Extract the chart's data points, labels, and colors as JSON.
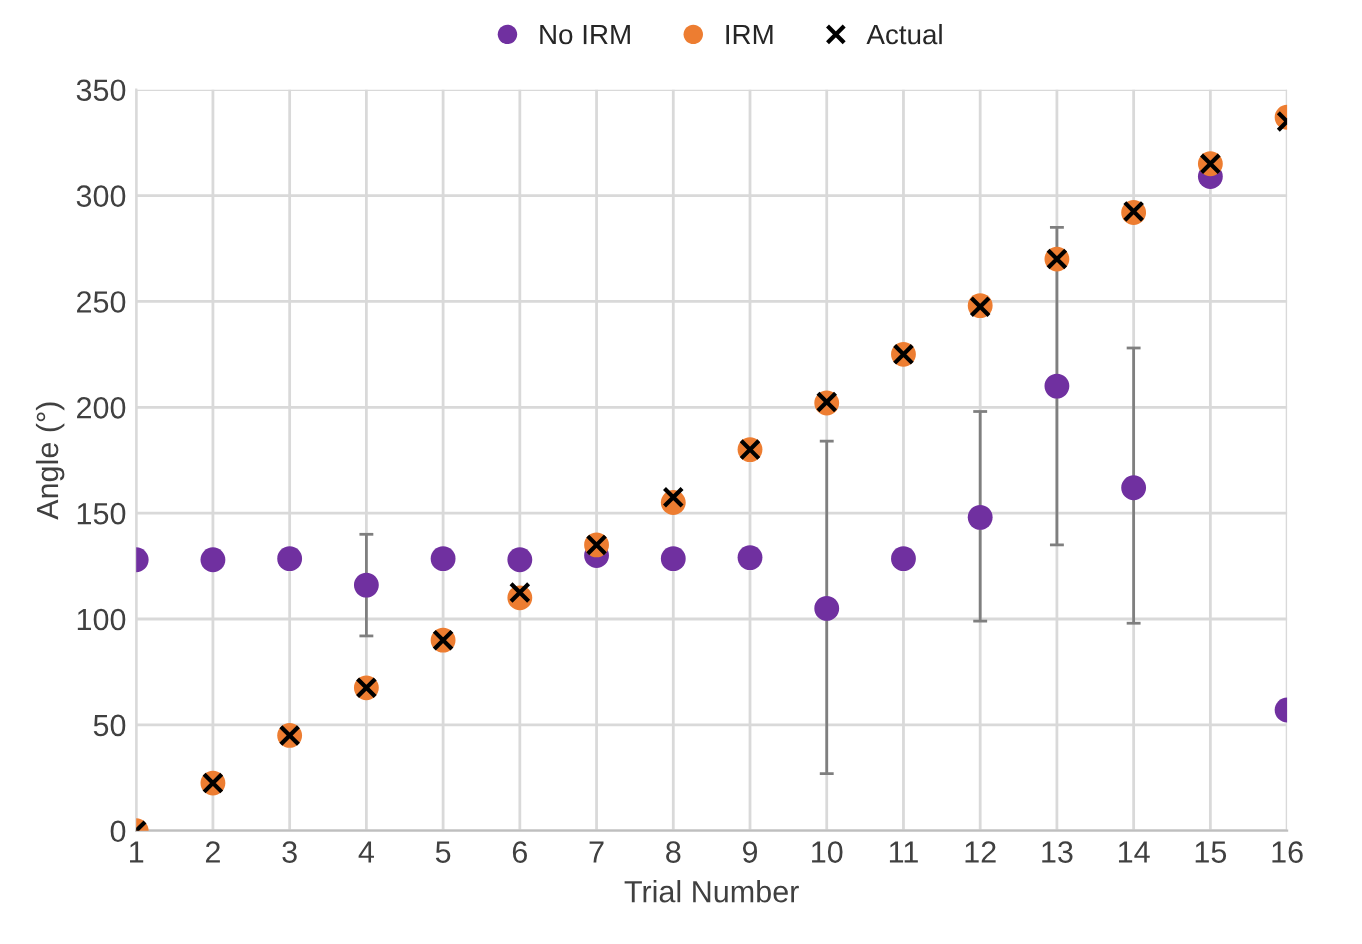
{
  "chart_data": {
    "type": "scatter",
    "xlabel": "Trial Number",
    "ylabel": "Angle (°)",
    "x": [
      1,
      2,
      3,
      4,
      5,
      6,
      7,
      8,
      9,
      10,
      11,
      12,
      13,
      14,
      15,
      16
    ],
    "xlim": [
      1,
      16
    ],
    "xticks": [
      1,
      2,
      3,
      4,
      5,
      6,
      7,
      8,
      9,
      10,
      11,
      12,
      13,
      14,
      15,
      16
    ],
    "ylim": [
      0,
      350
    ],
    "yticks": [
      0,
      50,
      100,
      150,
      200,
      250,
      300,
      350
    ],
    "grid": true,
    "legend": "top",
    "series": [
      {
        "name": "No IRM",
        "color": "#7030a0",
        "marker": "circle",
        "values": [
          128,
          128,
          128.5,
          116,
          128.5,
          128,
          130,
          128.5,
          129,
          105,
          128.5,
          148,
          210,
          162,
          309,
          57
        ],
        "errors": [
          null,
          null,
          null,
          [
            92,
            140
          ],
          null,
          null,
          null,
          null,
          null,
          [
            27,
            184
          ],
          null,
          [
            99,
            198
          ],
          [
            135,
            285
          ],
          [
            98,
            228
          ],
          null,
          null
        ]
      },
      {
        "name": "IRM",
        "color": "#ed7d31",
        "marker": "circle",
        "values": [
          0,
          22.5,
          45,
          67.5,
          90,
          110,
          135,
          155,
          180,
          202,
          225,
          248,
          270,
          292,
          315,
          337
        ]
      },
      {
        "name": "Actual",
        "color": "#000000",
        "marker": "cross",
        "values": [
          0,
          22.5,
          45,
          67.5,
          90,
          112.5,
          135,
          157.5,
          180,
          202.5,
          225,
          247.5,
          270,
          292.5,
          315,
          335
        ]
      }
    ]
  }
}
